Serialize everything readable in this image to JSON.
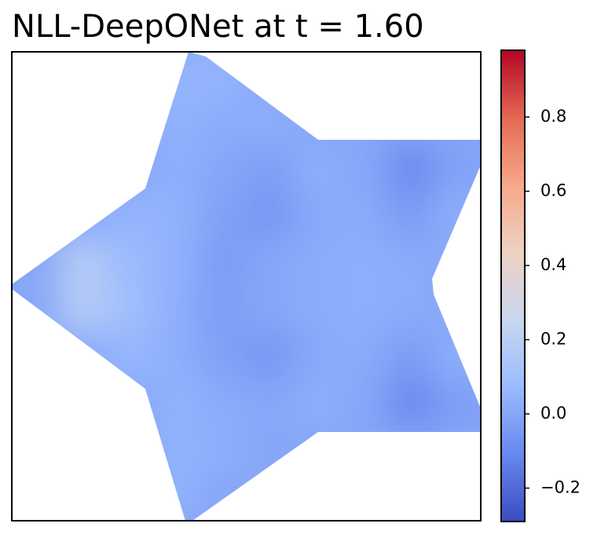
{
  "chart_data": {
    "type": "heatmap",
    "title": "NLL-DeepONet at t = 1.60",
    "values": [
      [
        null,
        null,
        null,
        0.05,
        0.05,
        null,
        null,
        null,
        null,
        null
      ],
      [
        null,
        null,
        null,
        0.04,
        0.02,
        0.03,
        null,
        null,
        null,
        null
      ],
      [
        null,
        null,
        null,
        0.03,
        0.0,
        -0.03,
        0.03,
        0.0,
        -0.1,
        -0.02
      ],
      [
        null,
        null,
        0.05,
        0.04,
        -0.02,
        -0.06,
        0.01,
        0.02,
        -0.04,
        0.03
      ],
      [
        null,
        0.18,
        0.08,
        0.04,
        -0.04,
        0.0,
        0.02,
        0.03,
        0.02,
        null
      ],
      [
        null,
        0.18,
        0.1,
        0.03,
        -0.03,
        0.0,
        0.02,
        0.03,
        0.02,
        null
      ],
      [
        null,
        null,
        0.06,
        0.03,
        -0.02,
        -0.06,
        0.01,
        0.02,
        -0.04,
        0.03
      ],
      [
        null,
        null,
        null,
        0.04,
        0.02,
        0.0,
        0.03,
        0.0,
        -0.1,
        -0.03
      ],
      [
        null,
        null,
        null,
        0.04,
        0.03,
        null,
        null,
        null,
        null,
        null
      ],
      [
        null,
        null,
        null,
        0.04,
        null,
        null,
        null,
        null,
        null,
        null
      ]
    ],
    "clim": [
      -0.29,
      0.98
    ],
    "colorscale": [
      "#3b4cc0",
      "#6788ee",
      "#9abbff",
      "#c9d7f0",
      "#edd1c2",
      "#f7a889",
      "#e26952",
      "#b40426"
    ],
    "cticks": [
      {
        "value": -0.2,
        "label": "−0.2"
      },
      {
        "value": 0.0,
        "label": "0.0"
      },
      0.2,
      0.4,
      0.6,
      0.8
    ]
  }
}
